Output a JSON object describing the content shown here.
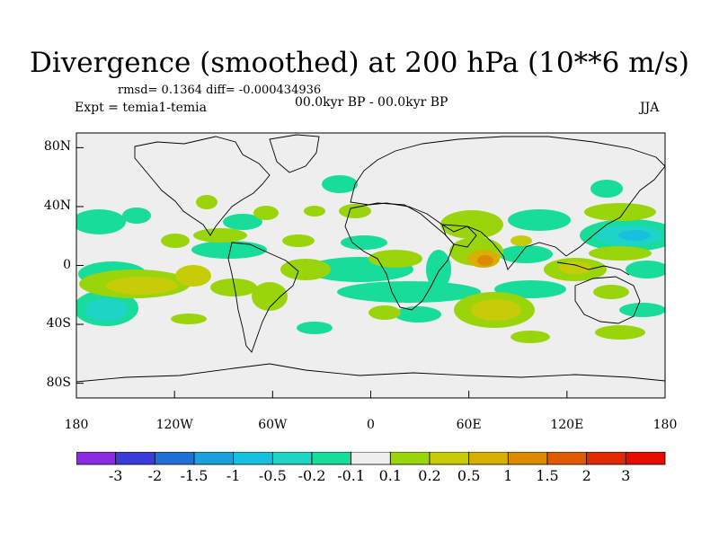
{
  "title": "Divergence (smoothed) at 200 hPa (10**6 m/s)",
  "stats": "rmsd= 0.1364 diff= -0.000434936",
  "experiment": "Expt = temia1-temia",
  "period": "00.0kyr BP - 00.0kyr BP",
  "season": "JJA",
  "map": {
    "lat_labels": [
      "80N",
      "40N",
      "0",
      "40S",
      "80S"
    ],
    "lon_labels": [
      "180",
      "120W",
      "60W",
      "0",
      "60E",
      "120E",
      "180"
    ],
    "ocean_color": "#eeeeee"
  },
  "colorbar": {
    "labels": [
      "-3",
      "-2",
      "-1.5",
      "-1",
      "-0.5",
      "-0.2",
      "-0.1",
      "0.1",
      "0.2",
      "0.5",
      "1",
      "1.5",
      "2",
      "3"
    ],
    "colors": [
      "#8a2be2",
      "#3b3bd9",
      "#1f6fd6",
      "#1aa0dc",
      "#18c0e0",
      "#1ed4c4",
      "#18dc9a",
      "#eeeeee",
      "#9ad40a",
      "#c6cc08",
      "#d8b004",
      "#dd8a00",
      "#e05a00",
      "#e02a00",
      "#e60c00"
    ]
  }
}
